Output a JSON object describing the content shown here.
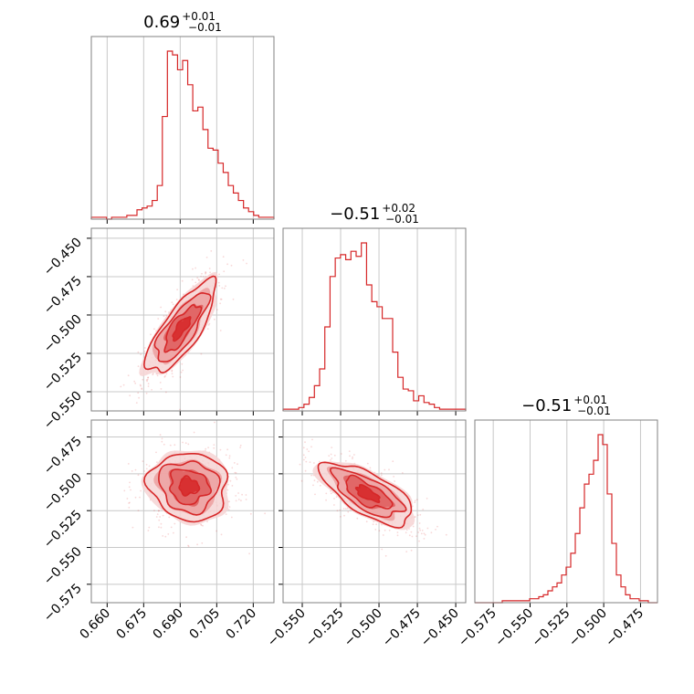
{
  "chart_data": {
    "type": "corner",
    "color": "#d62728",
    "fill_colors": [
      "#f6d4d4",
      "#ec9f9f",
      "#de5c5c",
      "#d62728"
    ],
    "grid": true,
    "titles": [
      {
        "median": "0.69",
        "plus": "+0.01",
        "minus": "−0.01"
      },
      {
        "median": "−0.51",
        "plus": "+0.02",
        "minus": "−0.01"
      },
      {
        "median": "−0.51",
        "plus": "+0.01",
        "minus": "−0.01"
      }
    ],
    "axes": [
      {
        "range": [
          0.6535,
          0.7285
        ],
        "ticks": [
          0.66,
          0.675,
          0.69,
          0.705,
          0.72
        ],
        "tick_labels": [
          "0.660",
          "0.675",
          "0.690",
          "0.705",
          "0.720"
        ]
      },
      {
        "range": [
          -0.5625,
          -0.4435
        ],
        "ticks": [
          -0.55,
          -0.525,
          -0.5,
          -0.475,
          -0.45
        ],
        "tick_labels": [
          "−0.550",
          "−0.525",
          "−0.500",
          "−0.475",
          "−0.450"
        ]
      },
      {
        "range": [
          -0.5875,
          -0.4635
        ],
        "ticks": [
          -0.575,
          -0.55,
          -0.525,
          -0.5,
          -0.475
        ],
        "tick_labels": [
          "−0.575",
          "−0.550",
          "−0.525",
          "−0.500",
          "−0.475"
        ]
      }
    ],
    "histograms": [
      {
        "counts": [
          1,
          1,
          1,
          0,
          1,
          1,
          1,
          2,
          2,
          5,
          6,
          7,
          10,
          18,
          55,
          90,
          88,
          80,
          85,
          72,
          58,
          60,
          48,
          38,
          37,
          30,
          25,
          18,
          14,
          10,
          6,
          4,
          2,
          1,
          1,
          1
        ]
      },
      {
        "counts": [
          1,
          1,
          1,
          2,
          4,
          8,
          15,
          25,
          50,
          80,
          91,
          93,
          90,
          95,
          92,
          100,
          75,
          65,
          62,
          55,
          55,
          35,
          20,
          13,
          12,
          6,
          9,
          5,
          4,
          2,
          1,
          1,
          1,
          1,
          1
        ]
      },
      {
        "counts": [
          0,
          0,
          0,
          0,
          0,
          0,
          1,
          1,
          1,
          1,
          1,
          1,
          2,
          2,
          3,
          4,
          6,
          8,
          10,
          14,
          18,
          25,
          35,
          48,
          60,
          65,
          72,
          85,
          80,
          55,
          30,
          14,
          8,
          4,
          2,
          2,
          1,
          1,
          0,
          0
        ]
      }
    ],
    "pairs": [
      {
        "x": 0,
        "y": 1,
        "center": [
          0.6905,
          -0.5085
        ],
        "sd": [
          0.0071,
          0.0149
        ],
        "rho": 0.78
      },
      {
        "x": 0,
        "y": 2,
        "center": [
          0.6935,
          -0.5085
        ],
        "sd": [
          0.008,
          0.0115
        ],
        "rho": -0.08
      },
      {
        "x": 1,
        "y": 2,
        "center": [
          -0.5075,
          -0.5135
        ],
        "sd": [
          0.0149,
          0.0105
        ],
        "rho": -0.68
      }
    ]
  }
}
